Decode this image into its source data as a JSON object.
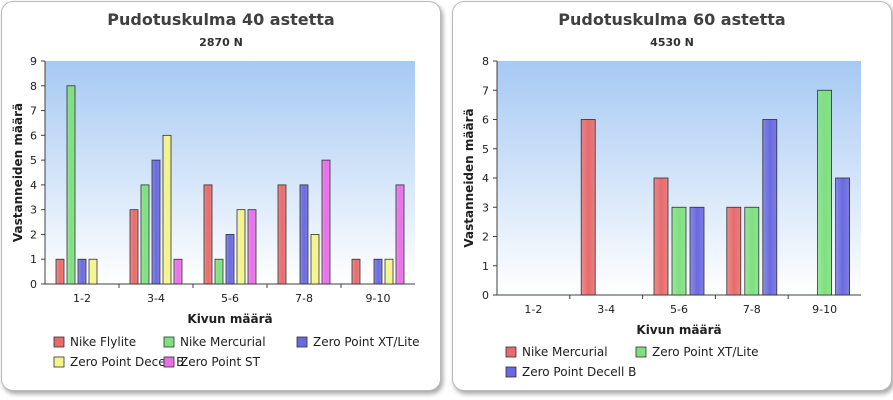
{
  "chart_data": [
    {
      "type": "bar",
      "title": "Pudotuskulma 40 astetta",
      "subtitle": "2870 N",
      "xlabel": "Kivun määrä",
      "ylabel": "Vastanneiden määrä",
      "ylim": [
        0,
        9
      ],
      "yticks": [
        0,
        1,
        2,
        3,
        4,
        5,
        6,
        7,
        8,
        9
      ],
      "categories": [
        "1-2",
        "3-4",
        "5-6",
        "7-8",
        "9-10"
      ],
      "legend_position": "bottom",
      "series": [
        {
          "name": "Nike Flylite",
          "color": "#e86b6b",
          "values": [
            1,
            3,
            4,
            4,
            1
          ]
        },
        {
          "name": "Nike Mercurial",
          "color": "#7ee07e",
          "values": [
            8,
            4,
            1,
            0,
            0
          ]
        },
        {
          "name": "Zero Point XT/Lite",
          "color": "#6a6ae0",
          "values": [
            1,
            5,
            2,
            4,
            1
          ]
        },
        {
          "name": "Zero Point Decell B",
          "color": "#f4f48a",
          "values": [
            1,
            6,
            3,
            2,
            1
          ]
        },
        {
          "name": "Zero Point ST",
          "color": "#e86fe8",
          "values": [
            0,
            1,
            3,
            5,
            4
          ]
        }
      ]
    },
    {
      "type": "bar",
      "title": "Pudotuskulma 60 astetta",
      "subtitle": "4530 N",
      "xlabel": "Kivun määrä",
      "ylabel": "Vastanneiden määrä",
      "ylim": [
        0,
        8
      ],
      "yticks": [
        0,
        1,
        2,
        3,
        4,
        5,
        6,
        7,
        8
      ],
      "categories": [
        "1-2",
        "3-4",
        "5-6",
        "7-8",
        "9-10"
      ],
      "legend_position": "bottom",
      "series": [
        {
          "name": "Nike Mercurial",
          "color": "#e86b6b",
          "values": [
            0,
            6,
            4,
            3,
            0
          ]
        },
        {
          "name": "Zero Point XT/Lite",
          "color": "#7ee07e",
          "values": [
            0,
            0,
            3,
            3,
            7
          ]
        },
        {
          "name": "Zero Point Decell B",
          "color": "#6a6ae0",
          "values": [
            0,
            0,
            3,
            6,
            4
          ]
        }
      ]
    }
  ]
}
